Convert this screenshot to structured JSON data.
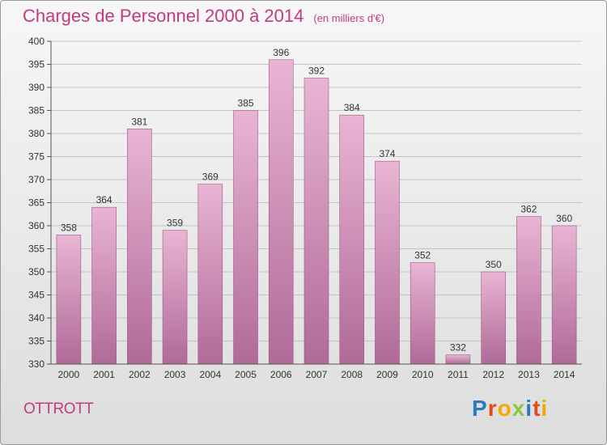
{
  "header": {
    "title": "Charges de Personnel 2000 à 2014",
    "unit": "(en milliers d'€)"
  },
  "footer": {
    "city": "OTTROTT",
    "logo": [
      "P",
      "r",
      "o",
      "x",
      "i",
      "t",
      "i"
    ]
  },
  "colors": {
    "accent": "#c03c7f",
    "bar_top": "#e9b5d3",
    "bar_bottom": "#b06a98",
    "logo": [
      "#2a7bc4",
      "#e64a19",
      "#f6a800",
      "#8cc63f",
      "#2a7bc4",
      "#e64a19",
      "#f6a800"
    ]
  },
  "chart_data": {
    "type": "bar",
    "categories": [
      "2000",
      "2001",
      "2002",
      "2003",
      "2004",
      "2005",
      "2006",
      "2007",
      "2008",
      "2009",
      "2010",
      "2011",
      "2012",
      "2013",
      "2014"
    ],
    "values": [
      358,
      364,
      381,
      359,
      369,
      385,
      396,
      392,
      384,
      374,
      352,
      332,
      350,
      362,
      360
    ],
    "ylim": [
      330,
      400
    ],
    "yticks": [
      330,
      335,
      340,
      345,
      350,
      355,
      360,
      365,
      370,
      375,
      380,
      385,
      390,
      395,
      400
    ],
    "grid": "horizontal"
  }
}
